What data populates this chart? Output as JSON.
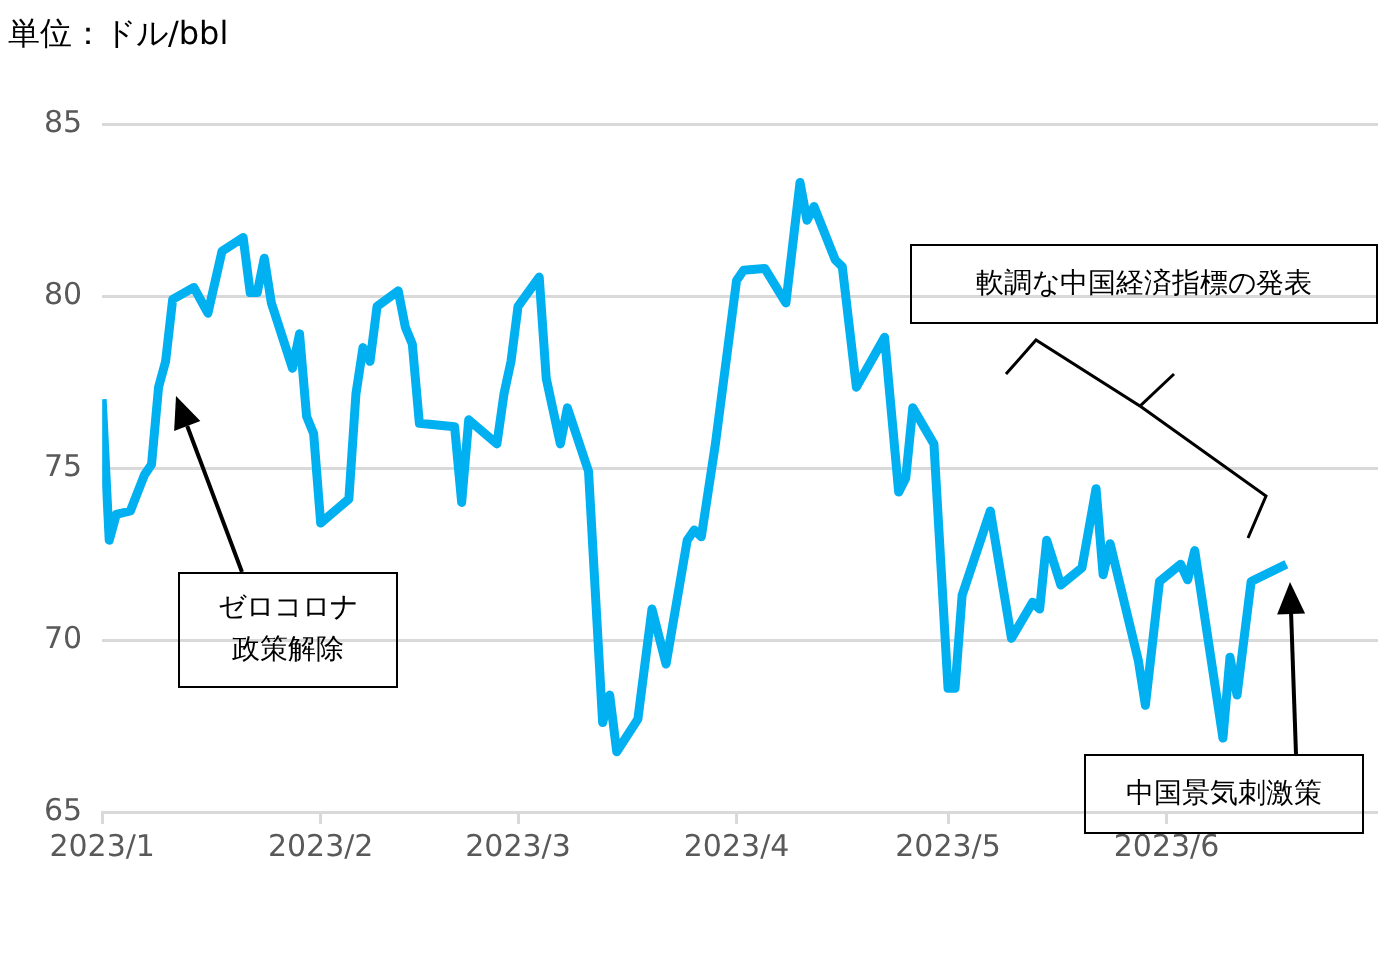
{
  "chart_data": {
    "type": "line",
    "x": [
      "2023-01-01",
      "2023-01-02",
      "2023-01-03",
      "2023-01-05",
      "2023-01-07",
      "2023-01-08",
      "2023-01-09",
      "2023-01-10",
      "2023-01-11",
      "2023-01-14",
      "2023-01-16",
      "2023-01-18",
      "2023-01-21",
      "2023-01-22",
      "2023-01-23",
      "2023-01-24",
      "2023-01-25",
      "2023-01-28",
      "2023-01-29",
      "2023-01-30",
      "2023-01-31",
      "2023-02-01",
      "2023-02-05",
      "2023-02-06",
      "2023-02-07",
      "2023-02-08",
      "2023-02-09",
      "2023-02-12",
      "2023-02-13",
      "2023-02-14",
      "2023-02-15",
      "2023-02-20",
      "2023-02-21",
      "2023-02-22",
      "2023-02-26",
      "2023-02-27",
      "2023-02-28",
      "2023-03-01",
      "2023-03-04",
      "2023-03-05",
      "2023-03-07",
      "2023-03-08",
      "2023-03-11",
      "2023-03-13",
      "2023-03-14",
      "2023-03-15",
      "2023-03-18",
      "2023-03-20",
      "2023-03-22",
      "2023-03-25",
      "2023-03-26",
      "2023-03-27",
      "2023-03-29",
      "2023-04-01",
      "2023-04-02",
      "2023-04-05",
      "2023-04-08",
      "2023-04-10",
      "2023-04-11",
      "2023-04-12",
      "2023-04-15",
      "2023-04-16",
      "2023-04-18",
      "2023-04-22",
      "2023-04-24",
      "2023-04-25",
      "2023-04-26",
      "2023-04-29",
      "2023-05-01",
      "2023-05-02",
      "2023-05-03",
      "2023-05-07",
      "2023-05-10",
      "2023-05-13",
      "2023-05-14",
      "2023-05-15",
      "2023-05-17",
      "2023-05-20",
      "2023-05-22",
      "2023-05-23",
      "2023-05-24",
      "2023-05-28",
      "2023-05-29",
      "2023-05-31",
      "2023-06-03",
      "2023-06-04",
      "2023-06-05",
      "2023-06-09",
      "2023-06-10",
      "2023-06-11",
      "2023-06-13",
      "2023-06-18"
    ],
    "series": [
      {
        "color": "#00b0f0",
        "values": [
          77.0,
          72.9,
          73.65,
          73.75,
          74.8,
          75.1,
          77.35,
          78.1,
          79.9,
          80.25,
          79.5,
          81.3,
          81.7,
          80.1,
          80.1,
          81.1,
          79.8,
          77.9,
          78.9,
          76.5,
          76.0,
          73.4,
          74.1,
          77.15,
          78.5,
          78.1,
          79.7,
          80.15,
          79.1,
          78.6,
          76.3,
          76.2,
          74.0,
          76.4,
          75.7,
          77.15,
          78.1,
          79.7,
          80.55,
          77.6,
          75.7,
          76.75,
          74.9,
          67.6,
          68.4,
          66.75,
          67.7,
          70.9,
          69.3,
          72.9,
          73.2,
          73.0,
          75.7,
          80.45,
          80.75,
          80.8,
          79.8,
          83.3,
          82.2,
          82.6,
          81.05,
          80.85,
          77.35,
          78.8,
          74.3,
          74.7,
          76.75,
          75.7,
          68.6,
          68.6,
          71.3,
          73.75,
          70.05,
          71.1,
          70.9,
          72.9,
          71.6,
          72.1,
          74.4,
          71.9,
          72.8,
          69.4,
          68.1,
          71.7,
          72.2,
          71.75,
          72.6,
          67.15,
          69.5,
          68.4,
          71.7,
          72.2
        ]
      }
    ],
    "xlim": [
      "2023-01-01",
      "2023-07-01"
    ],
    "xticks": [
      {
        "value": "2023-01-01",
        "label": "2023/1"
      },
      {
        "value": "2023-02-01",
        "label": "2023/2"
      },
      {
        "value": "2023-03-01",
        "label": "2023/3"
      },
      {
        "value": "2023-04-01",
        "label": "2023/4"
      },
      {
        "value": "2023-05-01",
        "label": "2023/5"
      },
      {
        "value": "2023-06-01",
        "label": "2023/6"
      }
    ],
    "ylim": [
      65,
      85
    ],
    "yticks": [
      65,
      70,
      75,
      80,
      85
    ],
    "grid": "y",
    "marker": "none",
    "annotations": [
      "単位：ドル/bbl",
      "ゼロコロナ政策解除",
      "軟調な中国経済指標の発表",
      "中国景気刺激策"
    ]
  }
}
